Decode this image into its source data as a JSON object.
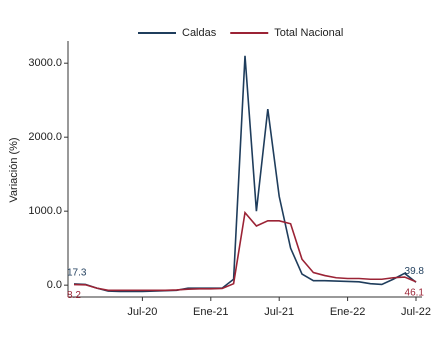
{
  "chart_data": {
    "type": "line",
    "y_label": "Variación (%)",
    "categories": [
      null,
      null,
      null,
      null,
      null,
      null,
      "Jul-20",
      null,
      null,
      null,
      null,
      null,
      "Ene-21",
      null,
      null,
      null,
      null,
      null,
      "Jul-21",
      null,
      null,
      null,
      null,
      null,
      "Ene-22",
      null,
      null,
      null,
      null,
      null,
      "Jul-22"
    ],
    "series": [
      {
        "name": "Caldas",
        "color": "#1f3d5c",
        "values": [
          17.3,
          10,
          -40,
          -80,
          -85,
          -85,
          -85,
          -80,
          -75,
          -70,
          -40,
          -40,
          -40,
          -40,
          80,
          3100,
          1000,
          2380,
          1200,
          500,
          150,
          60,
          60,
          55,
          50,
          45,
          20,
          10,
          80,
          160,
          39.8
        ]
      },
      {
        "name": "Total Nacional",
        "color": "#9b2335",
        "values": [
          8.2,
          5,
          -40,
          -70,
          -70,
          -70,
          -70,
          -70,
          -70,
          -65,
          -55,
          -50,
          -50,
          -45,
          20,
          980,
          800,
          870,
          870,
          830,
          350,
          170,
          130,
          100,
          90,
          90,
          80,
          80,
          100,
          110,
          46.1
        ]
      }
    ],
    "ylim": [
      -160,
      3300
    ],
    "yticks": [
      {
        "value": 0,
        "label": "0.0"
      },
      {
        "value": 1000,
        "label": "1000.0"
      },
      {
        "value": 2000,
        "label": "2000.0"
      },
      {
        "value": 3000,
        "label": "3000.0"
      }
    ],
    "legend": "top"
  }
}
